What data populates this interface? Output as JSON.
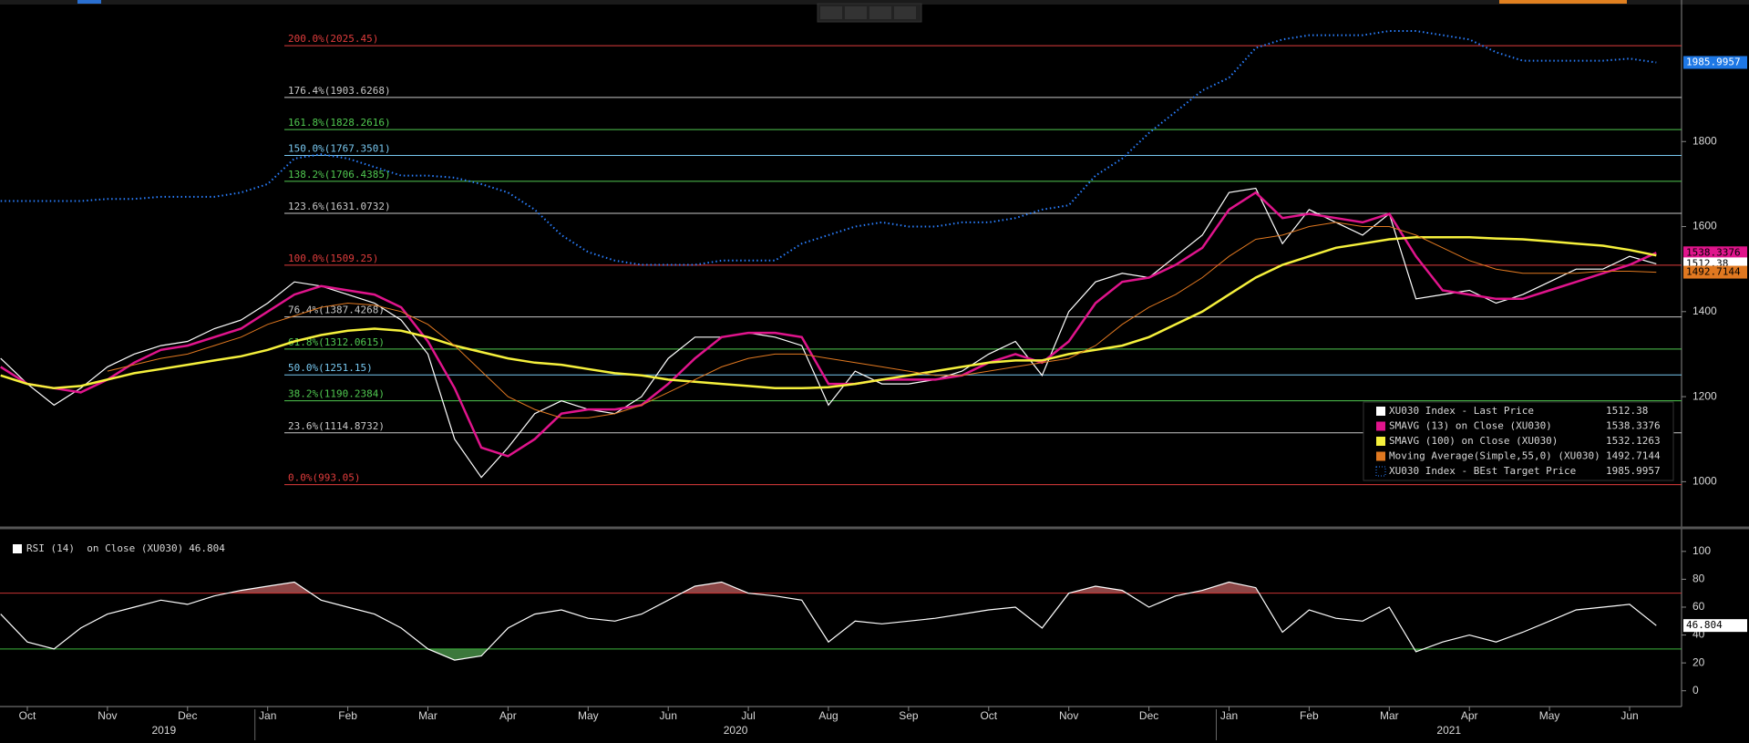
{
  "chart_data": [
    {
      "type": "line",
      "categories": [
        null,
        "Oct",
        null,
        null,
        "Nov",
        null,
        null,
        "Dec",
        null,
        null,
        "Jan",
        null,
        null,
        "Feb",
        null,
        null,
        "Mar",
        null,
        null,
        "Apr",
        null,
        null,
        "May",
        null,
        null,
        "Jun",
        null,
        null,
        "Jul",
        null,
        null,
        "Aug",
        null,
        null,
        "Sep",
        null,
        null,
        "Oct",
        null,
        null,
        "Nov",
        null,
        null,
        "Dec",
        null,
        null,
        "Jan",
        null,
        null,
        "Feb",
        null,
        null,
        "Mar",
        null,
        null,
        "Apr",
        null,
        null,
        "May",
        null,
        null,
        "Jun",
        null
      ],
      "years": [
        "2019",
        "2020",
        "2021"
      ],
      "ylim": [
        900,
        2120
      ],
      "yticks": [
        1000,
        1200,
        1400,
        1600,
        1800
      ],
      "legend": "lower right",
      "fib_levels": [
        {
          "value": 2025.45,
          "label": "200.0%(2025.45)",
          "color": "#e03c3c"
        },
        {
          "value": 1903.6268,
          "label": "176.4%(1903.6268)",
          "color": "#c8c8c8"
        },
        {
          "value": 1828.2616,
          "label": "161.8%(1828.2616)",
          "color": "#50c850"
        },
        {
          "value": 1767.3501,
          "label": "150.0%(1767.3501)",
          "color": "#78c8f0"
        },
        {
          "value": 1706.4385,
          "label": "138.2%(1706.4385)",
          "color": "#50c850"
        },
        {
          "value": 1631.0732,
          "label": "123.6%(1631.0732)",
          "color": "#c8c8c8"
        },
        {
          "value": 1509.25,
          "label": "100.0%(1509.25)",
          "color": "#e03c3c"
        },
        {
          "value": 1387.4268,
          "label": "76.4%(1387.4268)",
          "color": "#c8c8c8"
        },
        {
          "value": 1312.0615,
          "label": "61.8%(1312.0615)",
          "color": "#50c850"
        },
        {
          "value": 1251.15,
          "label": "50.0%(1251.15)",
          "color": "#78c8f0"
        },
        {
          "value": 1190.2384,
          "label": "38.2%(1190.2384)",
          "color": "#50c850"
        },
        {
          "value": 1114.8732,
          "label": "23.6%(1114.8732)",
          "color": "#c8c8c8"
        },
        {
          "value": 993.05,
          "label": "0.0%(993.05)",
          "color": "#e03c3c"
        }
      ],
      "series": [
        {
          "name": "XU030 Index - Last Price",
          "color": "#ffffff",
          "style": "solid",
          "values": [
            1290,
            1230,
            1180,
            1220,
            1270,
            1300,
            1320,
            1330,
            1360,
            1380,
            1420,
            1470,
            1460,
            1440,
            1420,
            1380,
            1300,
            1100,
            1010,
            1080,
            1160,
            1190,
            1170,
            1160,
            1200,
            1290,
            1340,
            1340,
            1350,
            1340,
            1320,
            1180,
            1260,
            1230,
            1230,
            1240,
            1260,
            1300,
            1330,
            1250,
            1400,
            1470,
            1490,
            1480,
            1530,
            1580,
            1680,
            1690,
            1560,
            1640,
            1610,
            1580,
            1630,
            1430,
            1440,
            1450,
            1420,
            1440,
            1470,
            1500,
            1500,
            1530,
            1512.38
          ]
        },
        {
          "name": "SMAVG (13)  on Close (XU030)",
          "color": "#e0148c",
          "style": "solid",
          "values": [
            1270,
            1230,
            1220,
            1210,
            1240,
            1280,
            1310,
            1320,
            1340,
            1360,
            1400,
            1440,
            1460,
            1450,
            1440,
            1410,
            1330,
            1220,
            1080,
            1060,
            1100,
            1160,
            1170,
            1170,
            1180,
            1230,
            1290,
            1340,
            1350,
            1350,
            1340,
            1230,
            1230,
            1240,
            1240,
            1240,
            1250,
            1280,
            1300,
            1280,
            1330,
            1420,
            1470,
            1480,
            1510,
            1550,
            1640,
            1680,
            1620,
            1630,
            1620,
            1610,
            1630,
            1530,
            1450,
            1440,
            1430,
            1430,
            1450,
            1470,
            1490,
            1510,
            1538.3376
          ]
        },
        {
          "name": "SMAVG (100)  on Close (XU030)",
          "color": "#f5f03c",
          "style": "solid",
          "values": [
            1250,
            1230,
            1220,
            1225,
            1240,
            1255,
            1265,
            1275,
            1285,
            1295,
            1310,
            1330,
            1345,
            1355,
            1360,
            1355,
            1340,
            1320,
            1305,
            1290,
            1280,
            1275,
            1265,
            1255,
            1250,
            1240,
            1235,
            1230,
            1225,
            1220,
            1220,
            1222,
            1230,
            1240,
            1250,
            1260,
            1270,
            1280,
            1285,
            1285,
            1300,
            1310,
            1320,
            1340,
            1370,
            1400,
            1440,
            1480,
            1510,
            1530,
            1550,
            1560,
            1570,
            1575,
            1575,
            1575,
            1572,
            1570,
            1565,
            1560,
            1555,
            1545,
            1532.1263
          ]
        },
        {
          "name": "Moving Average(Simple,55,0) (XU030)",
          "color": "#e07820",
          "style": "solid",
          "values": [
            null,
            null,
            null,
            null,
            1260,
            1275,
            1290,
            1300,
            1320,
            1340,
            1370,
            1390,
            1410,
            1420,
            1415,
            1400,
            1370,
            1320,
            1260,
            1200,
            1170,
            1150,
            1150,
            1160,
            1180,
            1210,
            1240,
            1270,
            1290,
            1300,
            1300,
            1290,
            1280,
            1270,
            1260,
            1250,
            1250,
            1260,
            1270,
            1280,
            1290,
            1320,
            1370,
            1410,
            1440,
            1480,
            1530,
            1570,
            1580,
            1600,
            1610,
            1600,
            1600,
            1580,
            1550,
            1520,
            1500,
            1490,
            1490,
            1490,
            1495,
            1495,
            1492.7144
          ]
        },
        {
          "name": "XU030 Index - BEst Target Price",
          "color": "#2a7fff",
          "style": "dotted",
          "values": [
            1660,
            1660,
            1660,
            1660,
            1665,
            1665,
            1670,
            1670,
            1670,
            1680,
            1700,
            1760,
            1770,
            1760,
            1740,
            1720,
            1720,
            1715,
            1700,
            1680,
            1640,
            1580,
            1540,
            1520,
            1510,
            1510,
            1510,
            1520,
            1520,
            1520,
            1560,
            1580,
            1600,
            1610,
            1600,
            1600,
            1610,
            1610,
            1620,
            1640,
            1650,
            1720,
            1760,
            1820,
            1870,
            1920,
            1950,
            2020,
            2040,
            2050,
            2050,
            2050,
            2060,
            2060,
            2050,
            2040,
            2010,
            1990,
            1990,
            1990,
            1990,
            1995,
            1985.9957
          ]
        }
      ]
    },
    {
      "type": "line",
      "ylim": [
        -10,
        111
      ],
      "yticks": [
        0,
        20,
        40,
        60,
        80,
        100
      ],
      "thresholds": [
        {
          "value": 70,
          "color": "#c83232",
          "fill": "#8c4646"
        },
        {
          "value": 30,
          "color": "#3cb43c",
          "fill": "#3c783c"
        }
      ],
      "series": [
        {
          "name": "RSI (14)  on Close (XU030)",
          "color": "#ffffff",
          "values": [
            55,
            35,
            30,
            45,
            55,
            60,
            65,
            62,
            68,
            72,
            75,
            78,
            65,
            60,
            55,
            45,
            30,
            22,
            25,
            45,
            55,
            58,
            52,
            50,
            55,
            65,
            75,
            78,
            70,
            68,
            65,
            35,
            50,
            48,
            50,
            52,
            55,
            58,
            60,
            45,
            70,
            75,
            72,
            60,
            68,
            72,
            78,
            74,
            42,
            58,
            52,
            50,
            60,
            28,
            35,
            40,
            35,
            42,
            50,
            58,
            60,
            62,
            46.804
          ]
        }
      ]
    }
  ]
}
